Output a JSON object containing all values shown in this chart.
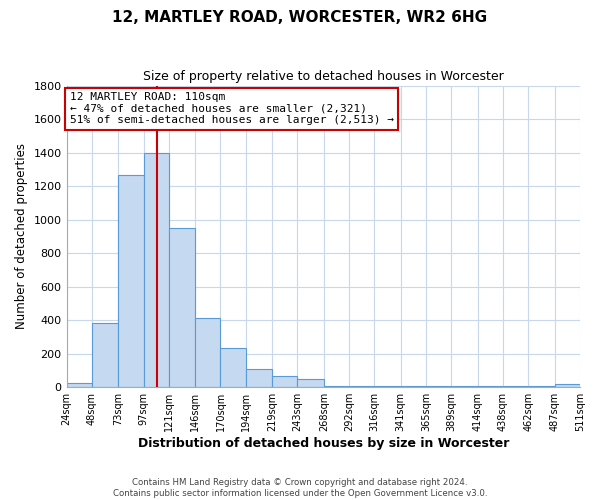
{
  "title": "12, MARTLEY ROAD, WORCESTER, WR2 6HG",
  "subtitle": "Size of property relative to detached houses in Worcester",
  "xlabel": "Distribution of detached houses by size in Worcester",
  "ylabel": "Number of detached properties",
  "bin_edges": [
    24,
    48,
    73,
    97,
    121,
    146,
    170,
    194,
    219,
    243,
    268,
    292,
    316,
    341,
    365,
    389,
    414,
    438,
    462,
    487,
    511
  ],
  "bar_heights": [
    25,
    385,
    1265,
    1400,
    950,
    415,
    235,
    110,
    65,
    50,
    5,
    5,
    5,
    5,
    5,
    5,
    5,
    5,
    5,
    20
  ],
  "bar_color": "#c5d9f1",
  "bar_edge_color": "#5b9bd5",
  "grid_color": "#c8d8ec",
  "background_color": "#ffffff",
  "vline_x": 110,
  "vline_color": "#cc0000",
  "annotation_text": "12 MARTLEY ROAD: 110sqm\n← 47% of detached houses are smaller (2,321)\n51% of semi-detached houses are larger (2,513) →",
  "annotation_box_color": "#ffffff",
  "annotation_box_edge_color": "#cc0000",
  "ylim": [
    0,
    1800
  ],
  "yticks": [
    0,
    200,
    400,
    600,
    800,
    1000,
    1200,
    1400,
    1600,
    1800
  ],
  "tick_labels": [
    "24sqm",
    "48sqm",
    "73sqm",
    "97sqm",
    "121sqm",
    "146sqm",
    "170sqm",
    "194sqm",
    "219sqm",
    "243sqm",
    "268sqm",
    "292sqm",
    "316sqm",
    "341sqm",
    "365sqm",
    "389sqm",
    "414sqm",
    "438sqm",
    "462sqm",
    "487sqm",
    "511sqm"
  ],
  "footer_line1": "Contains HM Land Registry data © Crown copyright and database right 2024.",
  "footer_line2": "Contains public sector information licensed under the Open Government Licence v3.0."
}
